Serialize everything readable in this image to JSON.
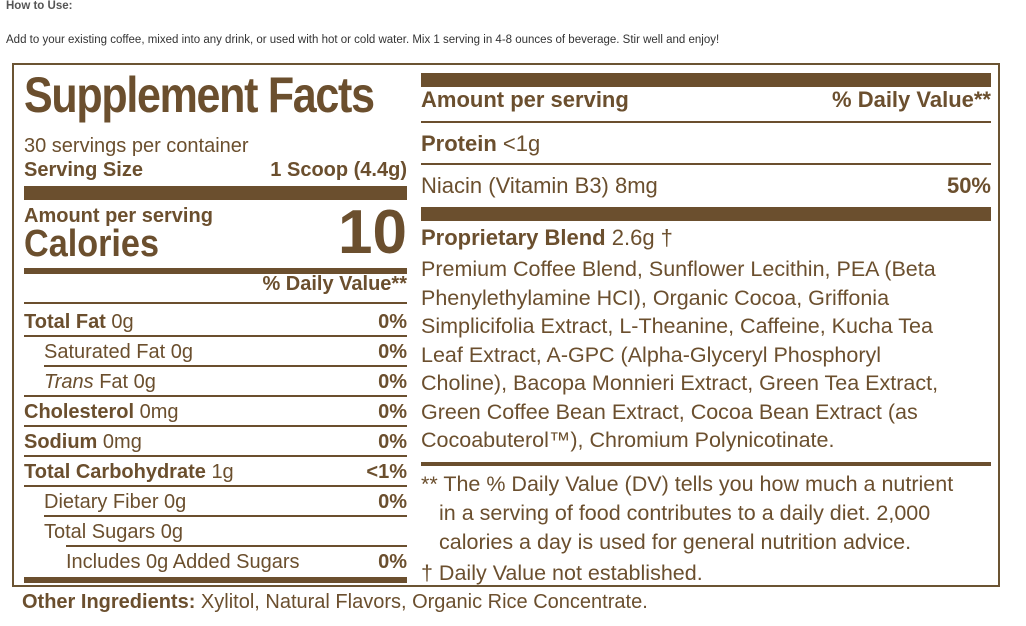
{
  "how_to": {
    "heading": "How to Use:",
    "text": "Add to your existing coffee, mixed into any drink, or used with hot or cold water. Mix 1 serving in 4-8 ounces of beverage. Stir well and enjoy!"
  },
  "facts": {
    "title": "Supplement Facts",
    "servings_per_container": "30 servings per container",
    "serving_size_label": "Serving Size",
    "serving_size_value": "1 Scoop (4.4g)",
    "amount_per_serving": "Amount per serving",
    "calories_label": "Calories",
    "calories_value": "10",
    "dv_header": "% Daily Value**",
    "nutrients": [
      {
        "name": "Total Fat",
        "amount": "0g",
        "dv": "0%"
      },
      {
        "name": "Saturated Fat",
        "amount": "0g",
        "dv": "0%"
      },
      {
        "prefix": "Trans",
        "name": " Fat",
        "amount": "0g",
        "dv": "0%"
      },
      {
        "name": "Cholesterol",
        "amount": "0mg",
        "dv": "0%"
      },
      {
        "name": "Sodium",
        "amount": "0mg",
        "dv": "0%"
      },
      {
        "name": "Total Carbohydrate",
        "amount": "1g",
        "dv": "<1%"
      },
      {
        "name": "Dietary Fiber",
        "amount": "0g",
        "dv": "0%"
      },
      {
        "name": "Total Sugars",
        "amount": "0g",
        "dv": ""
      },
      {
        "name": "Includes 0g Added Sugars",
        "amount": "",
        "dv": "0%"
      }
    ],
    "right": {
      "amount_per_serving": "Amount per serving",
      "dv_header": "% Daily Value**",
      "protein_label": "Protein",
      "protein_amount": "<1g",
      "niacin_label": "Niacin (Vitamin B3) 8mg",
      "niacin_dv": "50%",
      "blend_label": "Proprietary Blend",
      "blend_amount": "2.6g †",
      "blend_lines": [
        "Premium Coffee Blend, Sunflower Lecithin, PEA (Beta",
        "Phenylethylamine HCI), Organic Cocoa, Griffonia",
        "Simplicifolia Extract, L-Theanine, Caffeine, Kucha Tea",
        "Leaf Extract, A-GPC (Alpha-Glyceryl Phosphoryl",
        "Choline), Bacopa Monnieri Extract, Green Tea Extract,",
        "Green Coffee Bean Extract, Cocoa Bean Extract (as",
        "Cocoabuterol™), Chromium Polynicotinate."
      ],
      "footnote_lines": [
        "** The % Daily Value (DV) tells you how much a nutrient",
        "in a serving of food contributes to a daily diet. 2,000",
        "calories a day is used for general nutrition advice."
      ],
      "dagger_note": "† Daily Value not established."
    }
  },
  "other_ingredients": {
    "label": "Other Ingredients:",
    "text": " Xylitol, Natural Flavors, Organic Rice Concentrate."
  }
}
